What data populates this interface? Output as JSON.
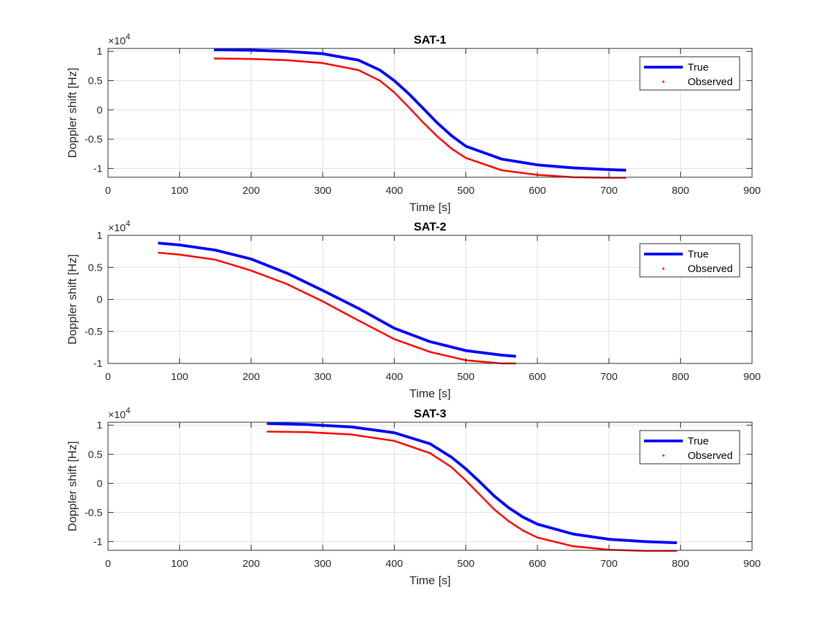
{
  "colors": {
    "true": "#0000ff",
    "observed": "#ff0000",
    "grid": "#dfdfdf",
    "axis": "#262626"
  },
  "chart_data": [
    {
      "type": "line",
      "title": "SAT-1",
      "xlabel": "Time [s]",
      "ylabel": "Doppler shift [Hz]",
      "exponent": "×10^4",
      "xlim": [
        0,
        900
      ],
      "ylim": [
        -1.15,
        1.05
      ],
      "xticks": [
        0,
        100,
        200,
        300,
        400,
        500,
        600,
        700,
        800,
        900
      ],
      "yticks": [
        -1,
        -0.5,
        0,
        0.5,
        1
      ],
      "ytick_labels": [
        "-1",
        "-0.5",
        "0",
        "0.5",
        "1"
      ],
      "grid": true,
      "legend_position": "top-right",
      "series": [
        {
          "name": "True",
          "style": "line",
          "color": "#0000ff",
          "x": [
            148,
            200,
            250,
            300,
            350,
            380,
            400,
            420,
            440,
            460,
            480,
            500,
            550,
            600,
            650,
            700,
            724
          ],
          "y": [
            1.03,
            1.02,
            1.0,
            0.96,
            0.85,
            0.68,
            0.5,
            0.28,
            0.03,
            -0.22,
            -0.44,
            -0.62,
            -0.84,
            -0.94,
            -0.99,
            -1.02,
            -1.03
          ]
        },
        {
          "name": "Observed",
          "style": "dots",
          "color": "#ff0000",
          "x": [
            148,
            200,
            250,
            300,
            350,
            380,
            400,
            420,
            440,
            460,
            480,
            500,
            550,
            600,
            650,
            700,
            724
          ],
          "y": [
            0.88,
            0.87,
            0.85,
            0.8,
            0.68,
            0.5,
            0.3,
            0.05,
            -0.21,
            -0.45,
            -0.66,
            -0.82,
            -1.03,
            -1.11,
            -1.15,
            -1.16,
            -1.16
          ]
        }
      ]
    },
    {
      "type": "line",
      "title": "SAT-2",
      "xlabel": "Time [s]",
      "ylabel": "Doppler shift [Hz]",
      "exponent": "×10^4",
      "xlim": [
        0,
        900
      ],
      "ylim": [
        -1.0,
        1.0
      ],
      "xticks": [
        0,
        100,
        200,
        300,
        400,
        500,
        600,
        700,
        800,
        900
      ],
      "yticks": [
        -1,
        -0.5,
        0,
        0.5,
        1
      ],
      "ytick_labels": [
        "-1",
        "-0.5",
        "0",
        "0.5",
        "1"
      ],
      "grid": true,
      "legend_position": "top-right",
      "series": [
        {
          "name": "True",
          "style": "line",
          "color": "#0000ff",
          "x": [
            70,
            100,
            150,
            200,
            250,
            300,
            350,
            400,
            450,
            500,
            550,
            570
          ],
          "y": [
            0.88,
            0.85,
            0.77,
            0.63,
            0.41,
            0.14,
            -0.14,
            -0.45,
            -0.66,
            -0.8,
            -0.87,
            -0.89
          ]
        },
        {
          "name": "Observed",
          "style": "dots",
          "color": "#ff0000",
          "x": [
            70,
            100,
            150,
            200,
            250,
            300,
            350,
            400,
            450,
            500,
            550,
            570
          ],
          "y": [
            0.73,
            0.7,
            0.62,
            0.45,
            0.24,
            -0.03,
            -0.33,
            -0.62,
            -0.82,
            -0.95,
            -1.0,
            -1.0
          ]
        }
      ]
    },
    {
      "type": "line",
      "title": "SAT-3",
      "xlabel": "Time [s]",
      "ylabel": "Doppler shift [Hz]",
      "exponent": "×10^4",
      "xlim": [
        0,
        900
      ],
      "ylim": [
        -1.15,
        1.05
      ],
      "xticks": [
        0,
        100,
        200,
        300,
        400,
        500,
        600,
        700,
        800,
        900
      ],
      "yticks": [
        -1,
        -0.5,
        0,
        0.5,
        1
      ],
      "ytick_labels": [
        "-1",
        "-0.5",
        "0",
        "0.5",
        "1"
      ],
      "grid": true,
      "legend_position": "top-right",
      "series": [
        {
          "name": "True",
          "style": "line",
          "color": "#0000ff",
          "x": [
            222,
            280,
            340,
            400,
            450,
            480,
            500,
            520,
            540,
            560,
            580,
            600,
            650,
            700,
            750,
            795
          ],
          "y": [
            1.03,
            1.01,
            0.97,
            0.87,
            0.68,
            0.45,
            0.25,
            0.02,
            -0.22,
            -0.42,
            -0.58,
            -0.7,
            -0.87,
            -0.96,
            -1.0,
            -1.02
          ]
        },
        {
          "name": "Observed",
          "style": "dots",
          "color": "#ff0000",
          "x": [
            222,
            280,
            340,
            400,
            450,
            480,
            500,
            520,
            540,
            560,
            580,
            600,
            650,
            700,
            750,
            795
          ],
          "y": [
            0.89,
            0.88,
            0.84,
            0.73,
            0.52,
            0.28,
            0.05,
            -0.2,
            -0.45,
            -0.65,
            -0.81,
            -0.93,
            -1.08,
            -1.14,
            -1.16,
            -1.16
          ]
        }
      ]
    }
  ]
}
